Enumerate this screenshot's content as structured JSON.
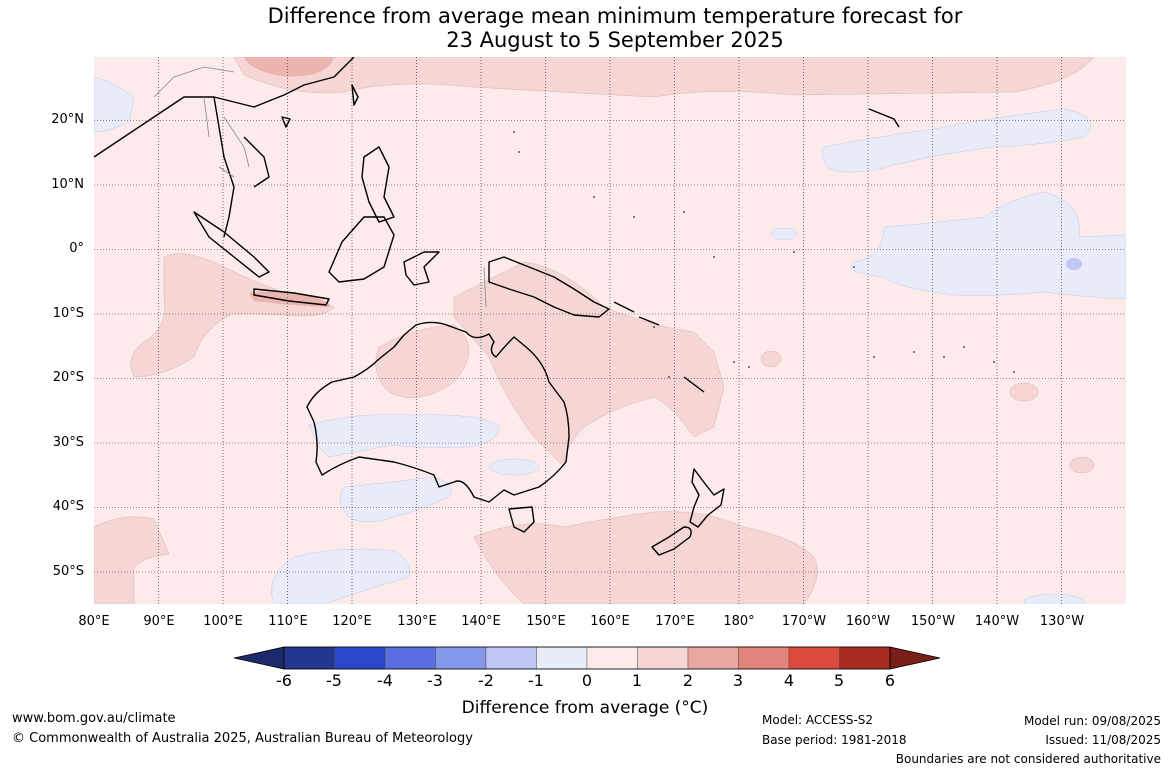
{
  "title": {
    "line1": "Difference from average mean minimum temperature forecast for",
    "line2": "23 August to 5 September 2025"
  },
  "map": {
    "region": "Australia, Maritime Continent and western Pacific",
    "lat_labels": [
      "20°N",
      "10°N",
      "0°",
      "10°S",
      "20°S",
      "30°S",
      "40°S",
      "50°S"
    ],
    "lon_labels": [
      "80°E",
      "90°E",
      "100°E",
      "110°E",
      "120°E",
      "130°E",
      "140°E",
      "150°E",
      "160°E",
      "170°E",
      "180°",
      "170°W",
      "160°W",
      "150°W",
      "140°W",
      "130°W"
    ],
    "gridlines": "dotted",
    "ocean_base_color": "#fcebea"
  },
  "colorbar": {
    "ticks": [
      "-6",
      "-5",
      "-4",
      "-3",
      "-2",
      "-1",
      "0",
      "1",
      "2",
      "3",
      "4",
      "5",
      "6"
    ],
    "colors": [
      "#24368f",
      "#2a48c9",
      "#596fe1",
      "#8497e8",
      "#bfc7f2",
      "#e8ebfa",
      "#fcebea",
      "#f5d6d4",
      "#e9a7a1",
      "#e2847b",
      "#db4a3d",
      "#a82a21"
    ],
    "low_extend_color": "#1a2a6b",
    "high_extend_color": "#7a1f18",
    "label": "Difference from average (°C)"
  },
  "footer": {
    "url": "www.bom.gov.au/climate",
    "copyright": "© Commonwealth of Australia 2025, Australian Bureau of Meteorology",
    "model": "Model: ACCESS-S2",
    "base_period": "Base period: 1981-2018",
    "model_run": "Model run: 09/08/2025",
    "issued": "Issued: 11/08/2025",
    "disclaimer": "Boundaries are not considered authoritative"
  }
}
